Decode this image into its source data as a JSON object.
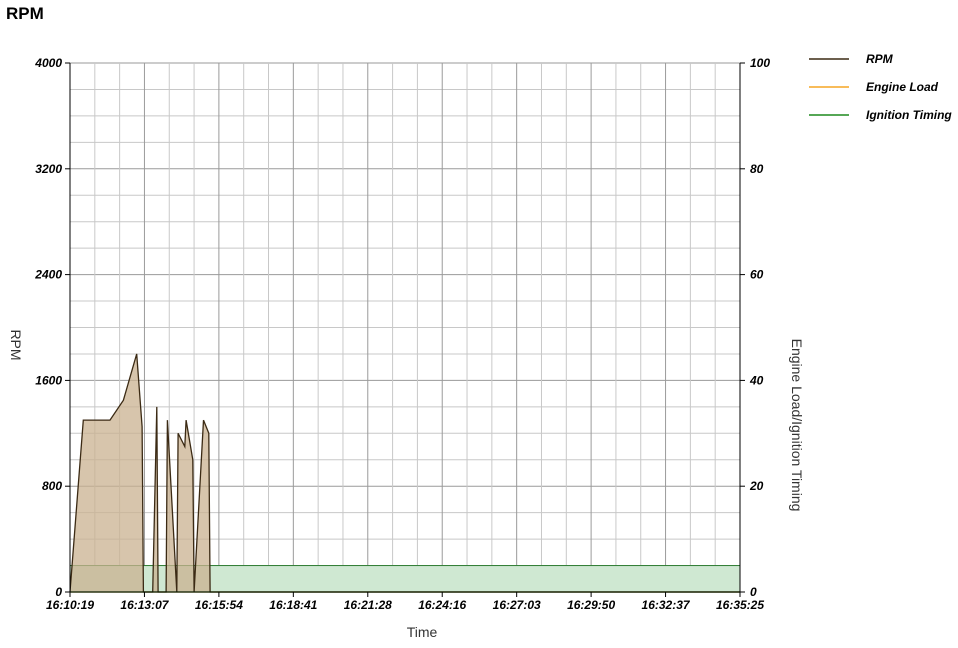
{
  "title": "RPM",
  "chart_data": {
    "type": "area",
    "title": "RPM",
    "xlabel": "Time",
    "ylabel_left": "RPM",
    "ylabel_right": "Engine Load/Ignition Timing",
    "x_ticks": [
      "16:10:19",
      "16:13:07",
      "16:15:54",
      "16:18:41",
      "16:21:28",
      "16:24:16",
      "16:27:03",
      "16:29:50",
      "16:32:37",
      "16:35:25"
    ],
    "y_left_ticks": [
      "0",
      "800",
      "1600",
      "2400",
      "3200",
      "4000"
    ],
    "y_right_ticks": [
      "0",
      "20",
      "40",
      "60",
      "80",
      "100"
    ],
    "ylim_left": [
      0,
      4000
    ],
    "ylim_right": [
      0,
      100
    ],
    "grid": true,
    "legend_position": "top-right",
    "threshold_band": {
      "from": 0,
      "to": 5,
      "axis": "right"
    },
    "series": [
      {
        "name": "RPM",
        "axis": "left",
        "color": "#3b2a14",
        "fill": "#c9b190",
        "x": [
          0,
          0.5,
          1.0,
          1.5,
          2.0,
          2.5,
          2.7,
          2.75,
          3.1,
          3.25,
          3.3,
          3.6,
          3.65,
          4.0,
          4.05,
          4.3,
          4.35,
          4.6,
          4.65,
          5.0,
          5.2,
          5.25,
          5.7,
          6.0,
          6.2,
          6.5,
          6.7,
          7.0,
          7.2,
          7.5,
          7.8,
          8.0,
          8.3,
          8.5,
          9.0,
          9.5,
          10.0,
          10.5,
          11.0,
          11.5,
          12.0,
          12.5,
          12.9,
          13.0,
          13.05,
          13.5,
          13.6,
          14.0,
          14.5,
          15.0,
          15.2,
          15.5,
          16.0,
          16.5,
          17.0,
          17.5,
          18.0,
          18.5,
          19.0,
          19.5,
          20.0,
          20.5,
          20.7,
          20.75,
          21.5,
          21.7,
          21.75,
          22.0,
          22.05,
          22.4,
          22.45,
          22.9,
          22.95,
          23.3,
          23.35,
          25.1
        ],
        "y": [
          0,
          1300,
          1300,
          1300,
          1450,
          1800,
          1250,
          0,
          0,
          1400,
          0,
          0,
          1300,
          0,
          1200,
          1100,
          1300,
          1000,
          0,
          1300,
          1200,
          0,
          0,
          0,
          0,
          0,
          0,
          0,
          0,
          0,
          0,
          0,
          0,
          0,
          0,
          0,
          0,
          0,
          0,
          0,
          0,
          0,
          0,
          0,
          0,
          0,
          0,
          0,
          0,
          0,
          0,
          0,
          0,
          0,
          0,
          0,
          0,
          0,
          0,
          0,
          0,
          0,
          0,
          0,
          0,
          0,
          0,
          0,
          0,
          0,
          0,
          0,
          0,
          0,
          0,
          0
        ]
      },
      {
        "name": "Engine Load",
        "axis": "right",
        "color": "#f5a623",
        "fill": "#fde9c4",
        "x": [
          0,
          25.1
        ],
        "y": [
          0,
          0
        ]
      },
      {
        "name": "Ignition Timing",
        "axis": "right",
        "color": "#1f8a1f",
        "fill": "#a3ad7a",
        "x": [
          0,
          25.1
        ],
        "y": [
          0,
          0
        ]
      }
    ]
  }
}
